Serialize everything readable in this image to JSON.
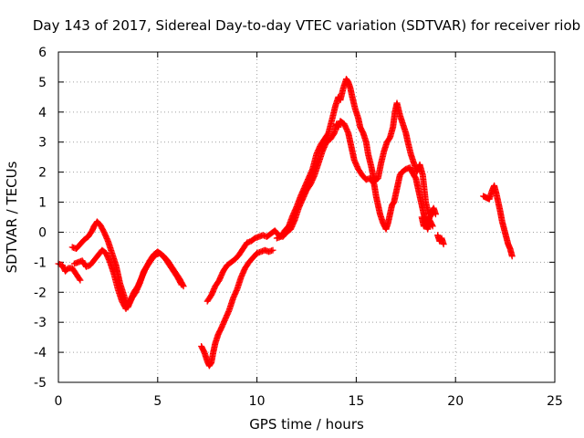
{
  "chart_data": {
    "type": "scatter",
    "title": "Day 143 of 2017, Sidereal Day-to-day VTEC variation (SDTVAR) for receiver riob",
    "xlabel": "GPS time / hours",
    "ylabel": "SDTVAR / TECUs",
    "xlim": [
      0,
      25
    ],
    "ylim": [
      -5,
      6
    ],
    "xticks": [
      "0",
      "5",
      "10",
      "15",
      "20",
      "25"
    ],
    "yticks": [
      "-5",
      "-4",
      "-3",
      "-2",
      "-1",
      "0",
      "1",
      "2",
      "3",
      "4",
      "5",
      "6"
    ],
    "grid": true,
    "marker": "+",
    "color": "#ff0000",
    "series": [
      {
        "segments": [
          [
            [
              0.0,
              -1.05
            ],
            [
              0.2,
              -1.1
            ],
            [
              0.35,
              -1.3
            ],
            [
              0.5,
              -1.2
            ],
            [
              0.7,
              -1.2
            ],
            [
              0.9,
              -1.4
            ],
            [
              1.1,
              -1.6
            ]
          ],
          [
            [
              0.8,
              -1.05
            ],
            [
              1.0,
              -1.0
            ],
            [
              1.2,
              -0.95
            ],
            [
              1.4,
              -1.15
            ],
            [
              1.6,
              -1.1
            ],
            [
              1.9,
              -0.85
            ],
            [
              2.2,
              -0.6
            ],
            [
              2.4,
              -0.7
            ],
            [
              2.6,
              -1.0
            ],
            [
              2.8,
              -1.4
            ],
            [
              3.0,
              -1.9
            ],
            [
              3.2,
              -2.3
            ],
            [
              3.4,
              -2.55
            ],
            [
              3.6,
              -2.3
            ],
            [
              3.8,
              -2.0
            ],
            [
              4.0,
              -1.8
            ],
            [
              4.2,
              -1.5
            ],
            [
              4.4,
              -1.2
            ],
            [
              4.6,
              -0.95
            ],
            [
              4.8,
              -0.75
            ],
            [
              5.0,
              -0.65
            ],
            [
              5.2,
              -0.75
            ],
            [
              5.4,
              -0.9
            ],
            [
              5.6,
              -1.1
            ],
            [
              5.8,
              -1.3
            ],
            [
              6.0,
              -1.5
            ],
            [
              6.2,
              -1.75
            ]
          ],
          [
            [
              0.7,
              -0.5
            ],
            [
              0.9,
              -0.55
            ],
            [
              1.1,
              -0.4
            ],
            [
              1.3,
              -0.25
            ],
            [
              1.5,
              -0.15
            ],
            [
              1.7,
              0.05
            ],
            [
              1.8,
              0.2
            ],
            [
              1.95,
              0.35
            ],
            [
              2.1,
              0.25
            ],
            [
              2.3,
              0.0
            ],
            [
              2.5,
              -0.3
            ],
            [
              2.7,
              -0.7
            ],
            [
              2.9,
              -1.1
            ],
            [
              3.0,
              -1.4
            ],
            [
              3.1,
              -1.7
            ],
            [
              3.3,
              -2.1
            ],
            [
              3.5,
              -2.5
            ],
            [
              3.7,
              -2.2
            ],
            [
              3.9,
              -2.0
            ],
            [
              4.1,
              -1.7
            ],
            [
              4.3,
              -1.3
            ],
            [
              4.5,
              -1.1
            ],
            [
              4.7,
              -0.9
            ],
            [
              4.9,
              -0.75
            ],
            [
              5.1,
              -0.7
            ],
            [
              5.3,
              -0.8
            ],
            [
              5.5,
              -0.95
            ],
            [
              5.7,
              -1.15
            ],
            [
              5.9,
              -1.35
            ],
            [
              6.1,
              -1.55
            ],
            [
              6.3,
              -1.8
            ]
          ],
          [
            [
              7.2,
              -3.8
            ],
            [
              7.35,
              -4.0
            ],
            [
              7.5,
              -4.3
            ],
            [
              7.6,
              -4.45
            ],
            [
              7.7,
              -4.35
            ],
            [
              7.8,
              -4.0
            ],
            [
              7.9,
              -3.7
            ],
            [
              8.05,
              -3.4
            ],
            [
              8.2,
              -3.2
            ],
            [
              8.4,
              -2.9
            ],
            [
              8.6,
              -2.6
            ],
            [
              8.8,
              -2.2
            ],
            [
              9.0,
              -1.9
            ],
            [
              9.2,
              -1.5
            ],
            [
              9.4,
              -1.2
            ],
            [
              9.6,
              -1.0
            ],
            [
              9.8,
              -0.85
            ],
            [
              10.0,
              -0.7
            ],
            [
              10.2,
              -0.65
            ],
            [
              10.4,
              -0.6
            ],
            [
              10.6,
              -0.65
            ],
            [
              10.8,
              -0.6
            ]
          ],
          [
            [
              7.5,
              -2.3
            ],
            [
              7.7,
              -2.1
            ],
            [
              7.9,
              -1.8
            ],
            [
              8.1,
              -1.6
            ],
            [
              8.3,
              -1.3
            ],
            [
              8.5,
              -1.1
            ],
            [
              8.7,
              -1.0
            ],
            [
              8.9,
              -0.9
            ],
            [
              9.1,
              -0.75
            ],
            [
              9.3,
              -0.55
            ],
            [
              9.5,
              -0.35
            ],
            [
              9.7,
              -0.3
            ],
            [
              9.9,
              -0.2
            ],
            [
              10.1,
              -0.15
            ],
            [
              10.3,
              -0.1
            ],
            [
              10.5,
              -0.15
            ],
            [
              10.7,
              -0.05
            ],
            [
              10.9,
              0.05
            ],
            [
              11.1,
              -0.1
            ],
            [
              11.3,
              -0.15
            ],
            [
              11.5,
              0.0
            ],
            [
              11.7,
              0.1
            ],
            [
              11.9,
              0.4
            ],
            [
              12.1,
              0.8
            ],
            [
              12.3,
              1.1
            ],
            [
              12.5,
              1.4
            ],
            [
              12.7,
              1.6
            ],
            [
              12.9,
              1.9
            ],
            [
              13.1,
              2.3
            ],
            [
              13.3,
              2.7
            ],
            [
              13.5,
              3.0
            ],
            [
              13.7,
              3.1
            ],
            [
              13.9,
              3.3
            ],
            [
              14.0,
              3.6
            ],
            [
              14.1,
              3.5
            ],
            [
              14.2,
              3.7
            ],
            [
              14.4,
              3.6
            ],
            [
              14.6,
              3.3
            ],
            [
              14.7,
              3.0
            ],
            [
              14.8,
              2.7
            ],
            [
              14.9,
              2.4
            ],
            [
              15.1,
              2.1
            ],
            [
              15.3,
              1.9
            ],
            [
              15.5,
              1.75
            ],
            [
              15.7,
              1.8
            ],
            [
              15.9,
              1.6
            ],
            [
              16.0,
              1.2
            ],
            [
              16.1,
              0.9
            ],
            [
              16.2,
              0.6
            ],
            [
              16.35,
              0.3
            ],
            [
              16.5,
              0.1
            ],
            [
              16.6,
              0.3
            ],
            [
              16.7,
              0.6
            ],
            [
              16.8,
              0.9
            ],
            [
              16.9,
              1.0
            ],
            [
              17.0,
              1.3
            ],
            [
              17.1,
              1.6
            ],
            [
              17.2,
              1.9
            ],
            [
              17.3,
              2.0
            ],
            [
              17.5,
              2.1
            ],
            [
              17.7,
              2.15
            ],
            [
              17.9,
              1.9
            ],
            [
              18.0,
              1.8
            ],
            [
              18.1,
              1.5
            ],
            [
              18.2,
              1.2
            ],
            [
              18.3,
              0.9
            ],
            [
              18.4,
              0.6
            ],
            [
              18.5,
              0.4
            ],
            [
              18.6,
              0.3
            ],
            [
              18.7,
              0.5
            ],
            [
              18.8,
              0.6
            ]
          ],
          [
            [
              11.0,
              -0.2
            ],
            [
              11.2,
              -0.15
            ],
            [
              11.4,
              0.05
            ],
            [
              11.6,
              0.2
            ],
            [
              11.8,
              0.55
            ],
            [
              12.0,
              0.85
            ],
            [
              12.2,
              1.2
            ],
            [
              12.4,
              1.5
            ],
            [
              12.6,
              1.8
            ],
            [
              12.8,
              2.1
            ],
            [
              13.0,
              2.6
            ],
            [
              13.2,
              2.9
            ],
            [
              13.4,
              3.1
            ],
            [
              13.6,
              3.3
            ],
            [
              13.8,
              3.8
            ],
            [
              13.95,
              4.2
            ],
            [
              14.1,
              4.5
            ],
            [
              14.2,
              4.4
            ],
            [
              14.35,
              4.8
            ],
            [
              14.5,
              5.1
            ],
            [
              14.6,
              5.0
            ],
            [
              14.7,
              4.8
            ],
            [
              14.8,
              4.5
            ],
            [
              14.95,
              4.1
            ],
            [
              15.1,
              3.8
            ],
            [
              15.2,
              3.5
            ],
            [
              15.35,
              3.3
            ],
            [
              15.5,
              3.0
            ],
            [
              15.6,
              2.6
            ],
            [
              15.75,
              2.2
            ],
            [
              15.85,
              1.9
            ],
            [
              15.95,
              1.7
            ],
            [
              16.1,
              1.8
            ],
            [
              16.25,
              2.3
            ],
            [
              16.4,
              2.7
            ],
            [
              16.55,
              3.0
            ],
            [
              16.7,
              3.15
            ],
            [
              16.85,
              3.5
            ],
            [
              16.95,
              4.0
            ],
            [
              17.05,
              4.3
            ],
            [
              17.2,
              3.9
            ],
            [
              17.35,
              3.6
            ],
            [
              17.5,
              3.3
            ],
            [
              17.6,
              3.0
            ],
            [
              17.75,
              2.6
            ],
            [
              17.9,
              2.3
            ],
            [
              18.05,
              2.0
            ],
            [
              18.2,
              2.25
            ],
            [
              18.35,
              1.9
            ],
            [
              18.5,
              1.0
            ],
            [
              18.65,
              0.6
            ],
            [
              18.8,
              0.7
            ],
            [
              18.9,
              0.8
            ],
            [
              19.0,
              0.6
            ]
          ],
          [
            [
              18.3,
              0.5
            ],
            [
              18.4,
              0.2
            ],
            [
              18.5,
              0.3
            ],
            [
              18.6,
              0.1
            ],
            [
              18.7,
              0.4
            ],
            [
              18.85,
              0.2
            ]
          ],
          [
            [
              19.1,
              -0.1
            ],
            [
              19.2,
              -0.3
            ],
            [
              19.3,
              -0.2
            ],
            [
              19.4,
              -0.4
            ]
          ],
          [
            [
              21.4,
              1.2
            ],
            [
              21.55,
              1.15
            ],
            [
              21.7,
              1.1
            ],
            [
              21.85,
              1.4
            ],
            [
              21.95,
              1.55
            ],
            [
              22.05,
              1.3
            ],
            [
              22.15,
              1.0
            ],
            [
              22.25,
              0.7
            ],
            [
              22.35,
              0.35
            ],
            [
              22.45,
              0.1
            ],
            [
              22.55,
              -0.15
            ],
            [
              22.65,
              -0.4
            ],
            [
              22.75,
              -0.55
            ],
            [
              22.85,
              -0.8
            ]
          ]
        ]
      }
    ]
  }
}
